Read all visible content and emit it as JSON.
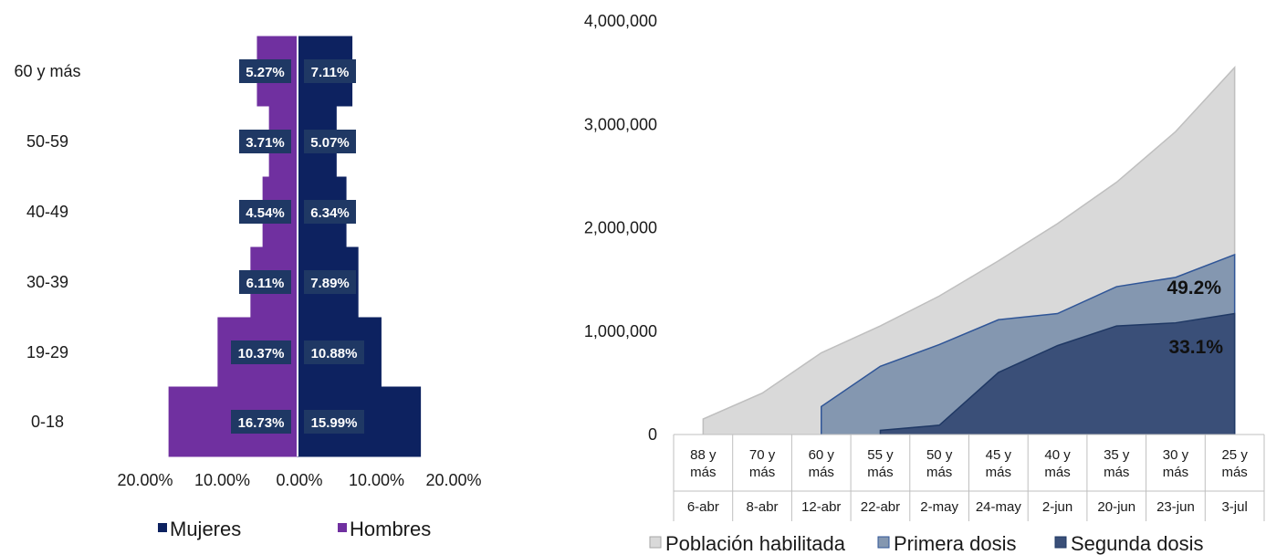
{
  "colors": {
    "mujeres": "#0d2260",
    "hombres": "#7030a0",
    "label_box": "#1f3864",
    "poblacion": "#d9d9d9",
    "poblacion_line": "#bfbfbf",
    "primera": "#8497b0",
    "primera_line": "#2f5597",
    "segunda": "#3a4f78",
    "segunda_line": "#1f3864"
  },
  "chart_data": [
    {
      "type": "bar",
      "orientation": "horizontal-pyramid",
      "categories": [
        "0-18",
        "19-29",
        "30-39",
        "40-49",
        "50-59",
        "60 y más"
      ],
      "series": [
        {
          "name": "Mujeres",
          "values": [
            15.99,
            10.88,
            7.89,
            6.34,
            5.07,
            7.11
          ],
          "labels": [
            "15.99%",
            "10.88%",
            "7.89%",
            "6.34%",
            "5.07%",
            "7.11%"
          ]
        },
        {
          "name": "Hombres",
          "values": [
            16.73,
            10.37,
            6.11,
            4.54,
            3.71,
            5.27
          ],
          "labels": [
            "16.73%",
            "10.37%",
            "6.11%",
            "4.54%",
            "3.71%",
            "5.27%"
          ]
        }
      ],
      "x_ticks": [
        "20.00%",
        "10.00%",
        "0.00%",
        "10.00%",
        "20.00%"
      ],
      "xlim": [
        -20,
        20
      ],
      "legend_position": "bottom"
    },
    {
      "type": "area",
      "categories": [
        {
          "group": "88 y más",
          "date": "6-abr"
        },
        {
          "group": "70 y más",
          "date": "8-abr"
        },
        {
          "group": "60 y más",
          "date": "12-abr"
        },
        {
          "group": "55 y más",
          "date": "22-abr"
        },
        {
          "group": "50 y más",
          "date": "2-may"
        },
        {
          "group": "45 y más",
          "date": "24-may"
        },
        {
          "group": "40 y más",
          "date": "2-jun"
        },
        {
          "group": "35 y más",
          "date": "20-jun"
        },
        {
          "group": "30 y más",
          "date": "23-jun"
        },
        {
          "group": "25 y más",
          "date": "3-jul"
        }
      ],
      "series": [
        {
          "name": "Población habilitada",
          "values": [
            150000,
            400000,
            790000,
            1050000,
            1340000,
            1680000,
            2040000,
            2440000,
            2930000,
            3550000
          ]
        },
        {
          "name": "Primera dosis",
          "values": [
            null,
            null,
            270000,
            660000,
            870000,
            1110000,
            1170000,
            1430000,
            1520000,
            1740000
          ]
        },
        {
          "name": "Segunda dosis",
          "values": [
            null,
            null,
            null,
            40000,
            90000,
            600000,
            860000,
            1050000,
            1080000,
            1170000
          ]
        }
      ],
      "y_ticks": [
        "0",
        "1,000,000",
        "2,000,000",
        "3,000,000",
        "4,000,000"
      ],
      "ylim": [
        0,
        4000000
      ],
      "annotations": [
        {
          "text": "49.2%",
          "series": "Primera dosis"
        },
        {
          "text": "33.1%",
          "series": "Segunda dosis"
        }
      ],
      "legend_position": "bottom"
    }
  ]
}
